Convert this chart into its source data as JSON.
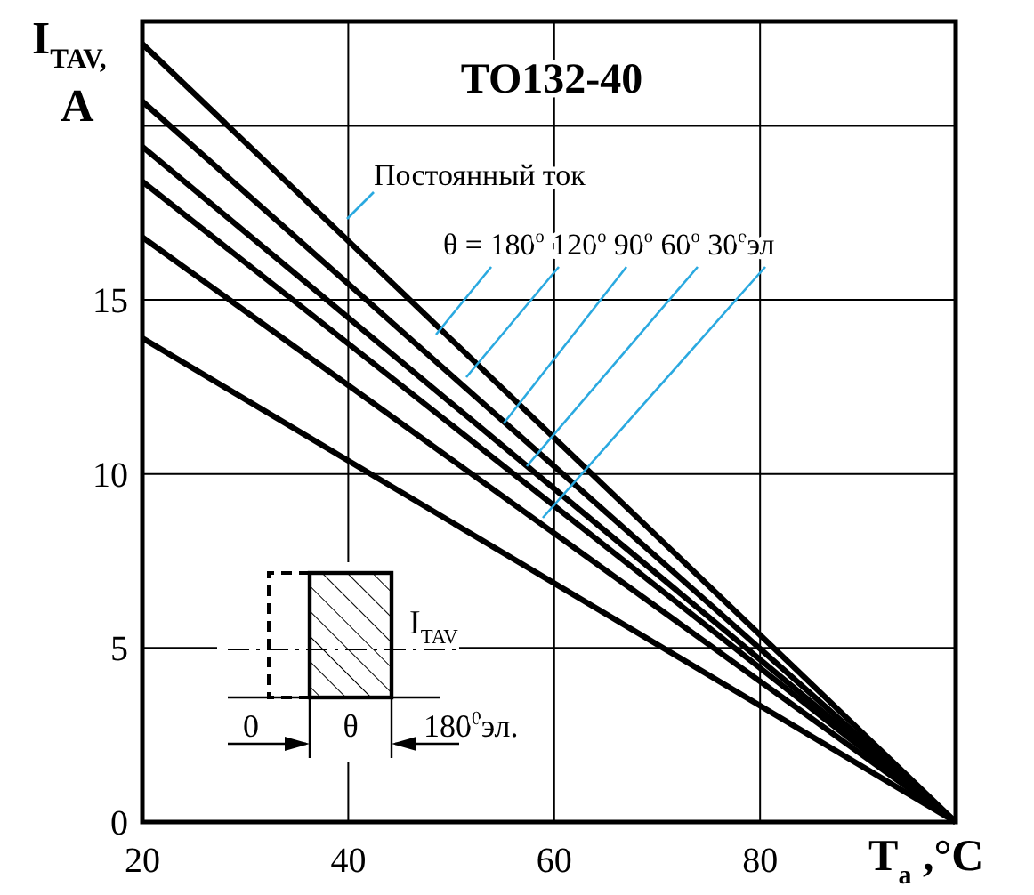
{
  "chart_data": {
    "type": "line",
    "title": "ТО132-40",
    "xlabel": "T$_{a}$ ,°C",
    "ylabel": "I$_{TAV,}$ A",
    "x": [
      20,
      99
    ],
    "xlim": [
      20,
      99
    ],
    "xticks": [
      20,
      40,
      60,
      80
    ],
    "ylim": [
      0,
      23
    ],
    "yticks": [
      0,
      5,
      10,
      15,
      {
        "value": 20,
        "label": null
      }
    ],
    "grid": true,
    "marker": "none",
    "line_style": "solid",
    "annotations": [
      "Постоянный ток",
      "θ = 180$^{o}$ 120$^{o}$ 90$^{o}$ 60$^{o}$ 30$^{o}$эл",
      "I$_{TAV}$",
      "0",
      "θ",
      "180$^{0}$эл."
    ],
    "series": [
      {
        "color": "#000000",
        "values": [
          22.35,
          0
        ]
      },
      {
        "color": "#000000",
        "values": [
          20.7,
          0
        ]
      },
      {
        "color": "#000000",
        "values": [
          19.4,
          0
        ]
      },
      {
        "color": "#000000",
        "values": [
          18.4,
          0
        ]
      },
      {
        "color": "#000000",
        "values": [
          16.8,
          0
        ]
      },
      {
        "color": "#000000",
        "values": [
          13.9,
          0
        ]
      }
    ]
  }
}
